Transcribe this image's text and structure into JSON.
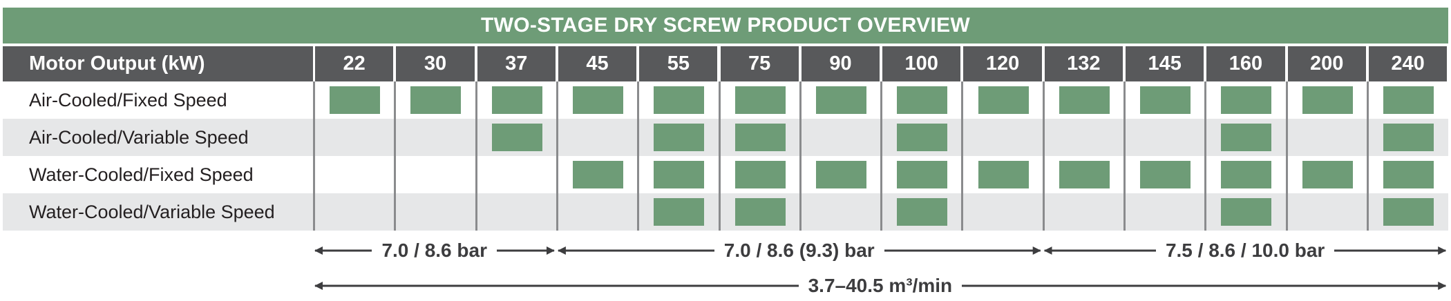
{
  "title": "TWO-STAGE DRY SCREW PRODUCT OVERVIEW",
  "header_label": "Motor Output (kW)",
  "columns": [
    "22",
    "30",
    "37",
    "45",
    "55",
    "75",
    "90",
    "100",
    "120",
    "132",
    "145",
    "160",
    "200",
    "240"
  ],
  "rows": [
    {
      "label": "Air-Cooled/Fixed Speed",
      "available": [
        true,
        true,
        true,
        true,
        true,
        true,
        true,
        true,
        true,
        true,
        true,
        true,
        true,
        true
      ]
    },
    {
      "label": "Air-Cooled/Variable Speed",
      "available": [
        false,
        false,
        true,
        false,
        true,
        true,
        false,
        true,
        false,
        false,
        false,
        true,
        false,
        true
      ]
    },
    {
      "label": "Water-Cooled/Fixed Speed",
      "available": [
        false,
        false,
        false,
        true,
        true,
        true,
        true,
        true,
        true,
        true,
        true,
        true,
        true,
        true
      ]
    },
    {
      "label": "Water-Cooled/Variable Speed",
      "available": [
        false,
        false,
        false,
        false,
        true,
        true,
        false,
        true,
        false,
        false,
        false,
        true,
        false,
        true
      ]
    }
  ],
  "pressure_ranges": [
    {
      "label": "7.0 / 8.6 bar",
      "from": "22",
      "to": "37"
    },
    {
      "label": "7.0 / 8.6 (9.3) bar",
      "from": "45",
      "to": "120"
    },
    {
      "label": "7.5 / 8.6 / 10.0 bar",
      "from": "132",
      "to": "240"
    }
  ],
  "flow_range": {
    "label": "3.7–40.5 m³/min",
    "from": "22",
    "to": "240"
  },
  "colors": {
    "title_bg": "#6e9c77",
    "header_bg": "#58595b",
    "cell_fill": "#6e9c77",
    "alt_row": "#e6e7e8"
  }
}
